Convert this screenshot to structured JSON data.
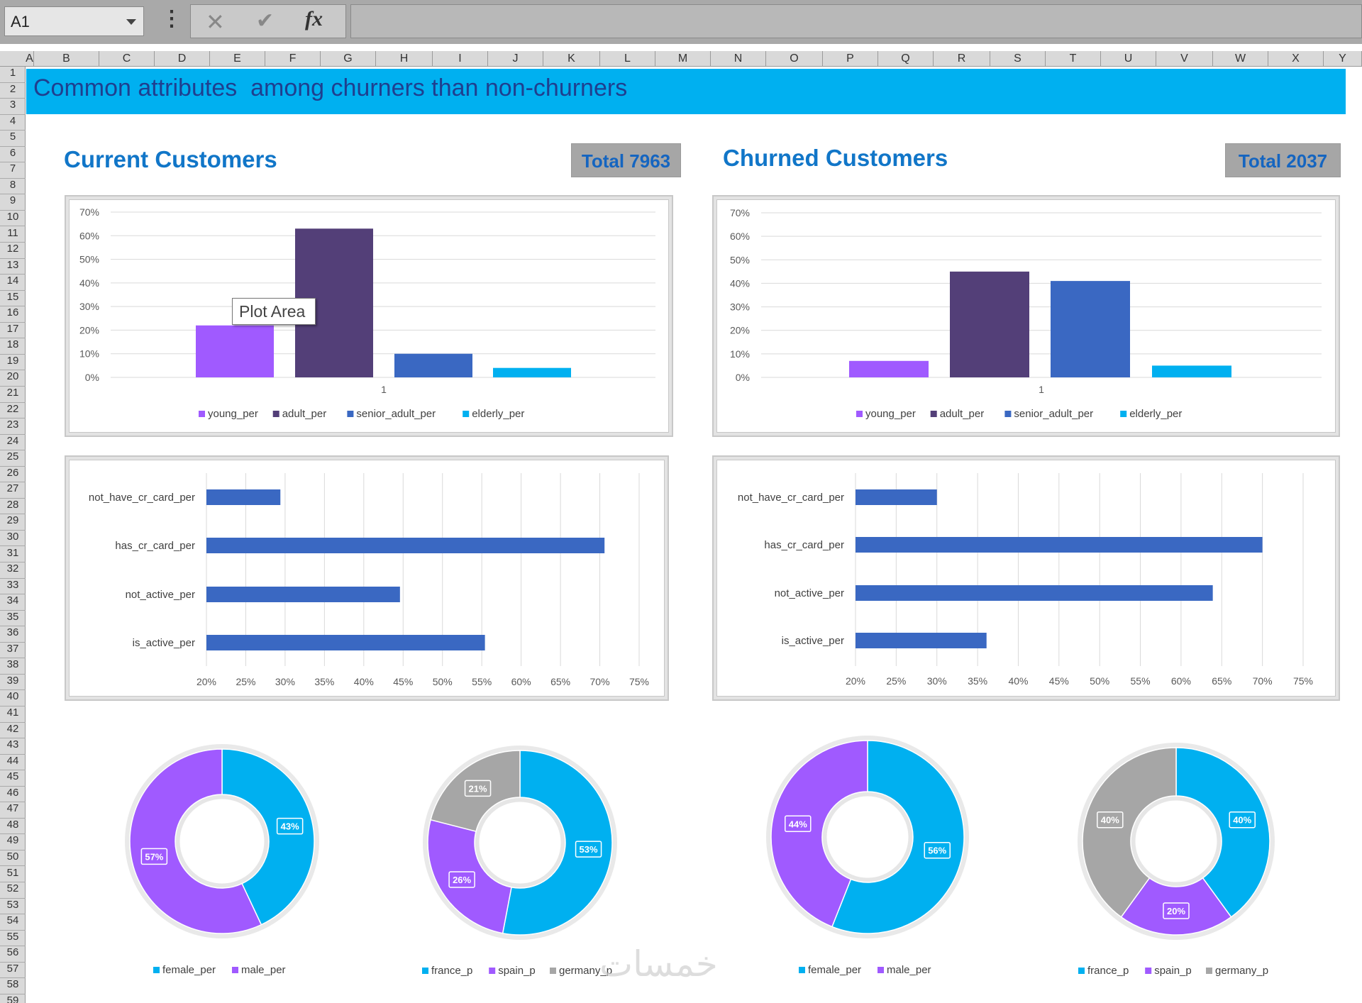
{
  "formula_bar": {
    "name_box": "A1",
    "more_icon": "vertical-ellipsis",
    "cancel_icon": "✕",
    "enter_icon": "✔",
    "fx_label": "fx",
    "formula": ""
  },
  "columns": [
    "A",
    "B",
    "C",
    "D",
    "E",
    "F",
    "G",
    "H",
    "I",
    "J",
    "K",
    "L",
    "M",
    "N",
    "O",
    "P",
    "Q",
    "R",
    "S",
    "T",
    "U",
    "V",
    "W",
    "X",
    "Y"
  ],
  "rows": [
    "1",
    "2",
    "3",
    "4",
    "5",
    "6",
    "7",
    "8",
    "9",
    "10",
    "11",
    "12",
    "13",
    "14",
    "15",
    "16",
    "17",
    "18",
    "19",
    "20",
    "21",
    "22",
    "23",
    "24",
    "25",
    "26",
    "27",
    "28",
    "29",
    "30",
    "31",
    "32",
    "33",
    "34",
    "35",
    "36",
    "37",
    "38",
    "39",
    "40",
    "41",
    "42",
    "43",
    "44",
    "45",
    "46",
    "47",
    "48",
    "49",
    "50",
    "51",
    "52",
    "53",
    "54",
    "55",
    "56",
    "57",
    "58",
    "59"
  ],
  "banner": {
    "title": "Common attributes  among churners than non-churners"
  },
  "sections": {
    "current": {
      "title": "Current Customers",
      "total": "Total 7963"
    },
    "churned": {
      "title": "Churned Customers",
      "total": "Total 2037"
    }
  },
  "tooltip": "Plot Area",
  "watermark": "خمسات",
  "colors": {
    "young": "#a05aff",
    "adult": "#533f78",
    "senior": "#3a68c2",
    "elderly": "#00b0f0",
    "france": "#00b0f0",
    "spain": "#a05aff",
    "germany": "#a6a6a6",
    "female": "#00b0f0",
    "male": "#a05aff",
    "banner": "#00b0f0",
    "title_blue": "#1176c8"
  },
  "chart_data": [
    {
      "id": "age_current",
      "type": "bar",
      "categories": [
        "1"
      ],
      "series": [
        {
          "name": "young_per",
          "values": [
            22
          ]
        },
        {
          "name": "adult_per",
          "values": [
            63
          ]
        },
        {
          "name": "senior_adult_per",
          "values": [
            10
          ]
        },
        {
          "name": "elderly_per",
          "values": [
            4
          ]
        }
      ],
      "yticks": [
        "0%",
        "10%",
        "20%",
        "30%",
        "40%",
        "50%",
        "60%",
        "70%"
      ],
      "ylim": [
        0,
        70
      ],
      "title": "",
      "xlabel": "",
      "ylabel": ""
    },
    {
      "id": "age_churned",
      "type": "bar",
      "categories": [
        "1"
      ],
      "series": [
        {
          "name": "young_per",
          "values": [
            7
          ]
        },
        {
          "name": "adult_per",
          "values": [
            45
          ]
        },
        {
          "name": "senior_adult_per",
          "values": [
            41
          ]
        },
        {
          "name": "elderly_per",
          "values": [
            5
          ]
        }
      ],
      "yticks": [
        "0%",
        "10%",
        "20%",
        "30%",
        "40%",
        "50%",
        "60%",
        "70%"
      ],
      "ylim": [
        0,
        70
      ],
      "title": "",
      "xlabel": "",
      "ylabel": ""
    },
    {
      "id": "cards_current",
      "type": "bar",
      "orientation": "horizontal",
      "categories": [
        "not_have_cr_card_per",
        "has_cr_card_per",
        "not_active_per",
        "is_active_per"
      ],
      "values": [
        29.4,
        70.6,
        44.6,
        55.4
      ],
      "xticks": [
        "20%",
        "25%",
        "30%",
        "35%",
        "40%",
        "45%",
        "50%",
        "55%",
        "60%",
        "65%",
        "70%",
        "75%"
      ],
      "xlim": [
        20,
        75
      ]
    },
    {
      "id": "cards_churned",
      "type": "bar",
      "orientation": "horizontal",
      "categories": [
        "not_have_cr_card_per",
        "has_cr_card_per",
        "not_active_per",
        "is_active_per"
      ],
      "values": [
        30.0,
        70.0,
        63.9,
        36.1
      ],
      "xticks": [
        "20%",
        "25%",
        "30%",
        "35%",
        "40%",
        "45%",
        "50%",
        "55%",
        "60%",
        "65%",
        "70%",
        "75%"
      ],
      "xlim": [
        20,
        75
      ]
    },
    {
      "id": "gender_current",
      "type": "pie",
      "donut": true,
      "categories": [
        "female_per",
        "male_per"
      ],
      "values": [
        43,
        57
      ],
      "labels": [
        "43%",
        "57%"
      ]
    },
    {
      "id": "geo_current",
      "type": "pie",
      "donut": true,
      "categories": [
        "france_p",
        "spain_p",
        "germany_p"
      ],
      "values": [
        53,
        26,
        21
      ],
      "labels": [
        "53%",
        "26%",
        "21%"
      ]
    },
    {
      "id": "gender_churned",
      "type": "pie",
      "donut": true,
      "categories": [
        "female_per",
        "male_per"
      ],
      "values": [
        56,
        44
      ],
      "labels": [
        "56%",
        "44%"
      ]
    },
    {
      "id": "geo_churned",
      "type": "pie",
      "donut": true,
      "categories": [
        "france_p",
        "spain_p",
        "germany_p"
      ],
      "values": [
        40,
        20,
        40
      ],
      "labels": [
        "40%",
        "20%",
        "40%"
      ]
    }
  ]
}
